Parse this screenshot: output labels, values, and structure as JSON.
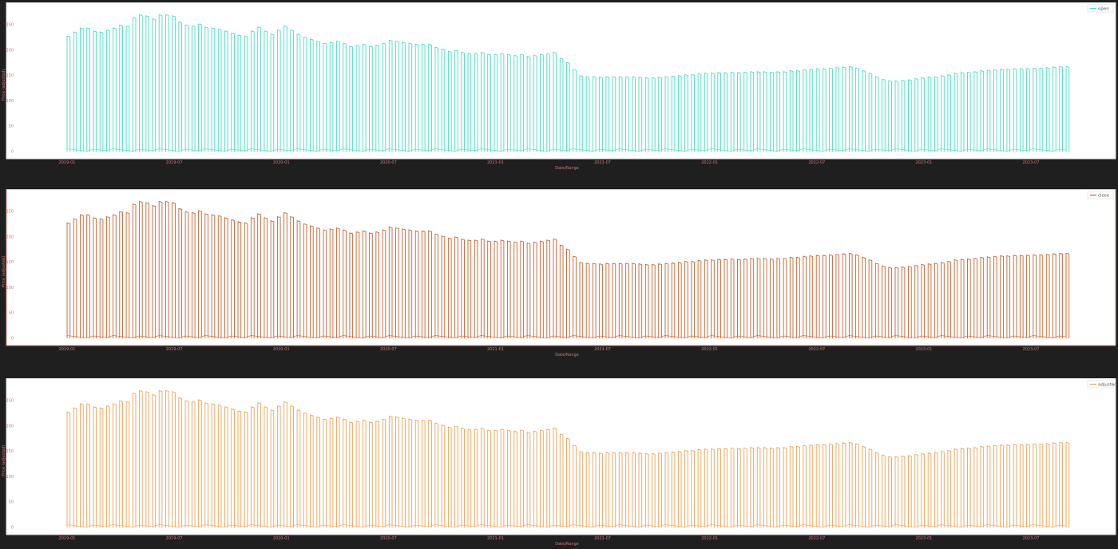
{
  "window": {
    "background": "#1f1f1f"
  },
  "chart_data": [
    {
      "type": "line",
      "legend": "open",
      "legend_position": "top-right",
      "color": "#40e0c0",
      "xlabel": "Date/Range",
      "ylabel": "Price (adjusted)",
      "xticks": [
        "2019-01",
        "2019-07",
        "2020-01",
        "2020-07",
        "2021-01",
        "2021-07",
        "2022-01",
        "2022-07",
        "2023-01",
        "2023-07"
      ],
      "yticks": [
        "0",
        "50",
        "100",
        "150",
        "200",
        "250"
      ],
      "ylim": [
        0,
        285
      ],
      "envelope": [
        228,
        236,
        244,
        244,
        238,
        236,
        240,
        244,
        250,
        248,
        265,
        270,
        268,
        262,
        270,
        270,
        268,
        256,
        250,
        248,
        252,
        246,
        244,
        242,
        238,
        234,
        230,
        228,
        238,
        246,
        238,
        232,
        240,
        248,
        240,
        232,
        226,
        222,
        218,
        214,
        216,
        218,
        214,
        208,
        210,
        212,
        208,
        210,
        214,
        220,
        218,
        216,
        214,
        212,
        212,
        212,
        206,
        202,
        198,
        200,
        196,
        194,
        194,
        196,
        192,
        192,
        194,
        192,
        190,
        192,
        188,
        190,
        192,
        194,
        196,
        184,
        176,
        162,
        150,
        148,
        148,
        147,
        148,
        148,
        148,
        148,
        148,
        147,
        146,
        146,
        147,
        148,
        149,
        150,
        152,
        152,
        154,
        155,
        155,
        156,
        156,
        157,
        156,
        157,
        158,
        158,
        158,
        157,
        158,
        158,
        160,
        160,
        162,
        163,
        164,
        164,
        165,
        166,
        167,
        168,
        165,
        160,
        155,
        148,
        143,
        140,
        140,
        141,
        142,
        144,
        146,
        147,
        148,
        150,
        152,
        155,
        156,
        157,
        158,
        160,
        161,
        162,
        163,
        163,
        164,
        164,
        164,
        165,
        165,
        166,
        167,
        168,
        168
      ]
    },
    {
      "type": "line",
      "legend": "close",
      "legend_position": "top-right",
      "color": "#c8602c",
      "xlabel": "Date/Range",
      "ylabel": "Price (adjusted)",
      "xticks": [
        "2019-01",
        "2019-07",
        "2020-01",
        "2020-07",
        "2021-01",
        "2021-07",
        "2022-01",
        "2022-07",
        "2023-01",
        "2023-07"
      ],
      "yticks": [
        "0",
        "50",
        "100",
        "150",
        "200",
        "250"
      ],
      "ylim": [
        0,
        285
      ],
      "envelope": [
        228,
        236,
        244,
        244,
        238,
        236,
        240,
        244,
        250,
        248,
        265,
        270,
        268,
        262,
        270,
        270,
        268,
        256,
        250,
        248,
        252,
        246,
        244,
        242,
        238,
        234,
        230,
        228,
        238,
        246,
        238,
        232,
        240,
        248,
        240,
        232,
        226,
        222,
        218,
        214,
        216,
        218,
        214,
        208,
        210,
        212,
        208,
        210,
        214,
        220,
        218,
        216,
        214,
        212,
        212,
        212,
        206,
        202,
        198,
        200,
        196,
        194,
        194,
        196,
        192,
        192,
        194,
        192,
        190,
        192,
        188,
        190,
        192,
        194,
        196,
        184,
        176,
        162,
        150,
        148,
        148,
        147,
        148,
        148,
        148,
        148,
        148,
        147,
        146,
        146,
        147,
        148,
        149,
        150,
        152,
        152,
        154,
        155,
        155,
        156,
        156,
        157,
        156,
        157,
        158,
        158,
        158,
        157,
        158,
        158,
        160,
        160,
        162,
        163,
        164,
        164,
        165,
        166,
        167,
        168,
        165,
        160,
        155,
        148,
        143,
        140,
        140,
        141,
        142,
        144,
        146,
        147,
        148,
        150,
        152,
        155,
        156,
        157,
        158,
        160,
        161,
        162,
        163,
        163,
        164,
        164,
        164,
        165,
        165,
        166,
        167,
        168,
        168
      ]
    },
    {
      "type": "line",
      "legend": "adjusted",
      "legend_position": "top-right",
      "color": "#f0a050",
      "xlabel": "Date/Range",
      "ylabel": "Price (adjusted)",
      "xticks": [
        "2019-01",
        "2019-07",
        "2020-01",
        "2020-07",
        "2021-01",
        "2021-07",
        "2022-01",
        "2022-07",
        "2023-01",
        "2023-07"
      ],
      "yticks": [
        "0",
        "50",
        "100",
        "150",
        "200",
        "250"
      ],
      "ylim": [
        0,
        285
      ],
      "envelope": [
        228,
        236,
        244,
        244,
        238,
        236,
        240,
        244,
        250,
        248,
        265,
        270,
        268,
        262,
        270,
        270,
        268,
        256,
        250,
        248,
        252,
        246,
        244,
        242,
        238,
        234,
        230,
        228,
        238,
        246,
        238,
        232,
        240,
        248,
        240,
        232,
        226,
        222,
        218,
        214,
        216,
        218,
        214,
        208,
        210,
        212,
        208,
        210,
        214,
        220,
        218,
        216,
        214,
        212,
        212,
        212,
        206,
        202,
        198,
        200,
        196,
        194,
        194,
        196,
        192,
        192,
        194,
        192,
        190,
        192,
        188,
        190,
        192,
        194,
        196,
        184,
        176,
        162,
        150,
        148,
        148,
        147,
        148,
        148,
        148,
        148,
        148,
        147,
        146,
        146,
        147,
        148,
        149,
        150,
        152,
        152,
        154,
        155,
        155,
        156,
        156,
        157,
        156,
        157,
        158,
        158,
        158,
        157,
        158,
        158,
        160,
        160,
        162,
        163,
        164,
        164,
        165,
        166,
        167,
        168,
        165,
        160,
        155,
        148,
        143,
        140,
        140,
        141,
        142,
        144,
        146,
        147,
        148,
        150,
        152,
        155,
        156,
        157,
        158,
        160,
        161,
        162,
        163,
        163,
        164,
        164,
        164,
        165,
        165,
        166,
        167,
        168,
        168
      ]
    }
  ]
}
